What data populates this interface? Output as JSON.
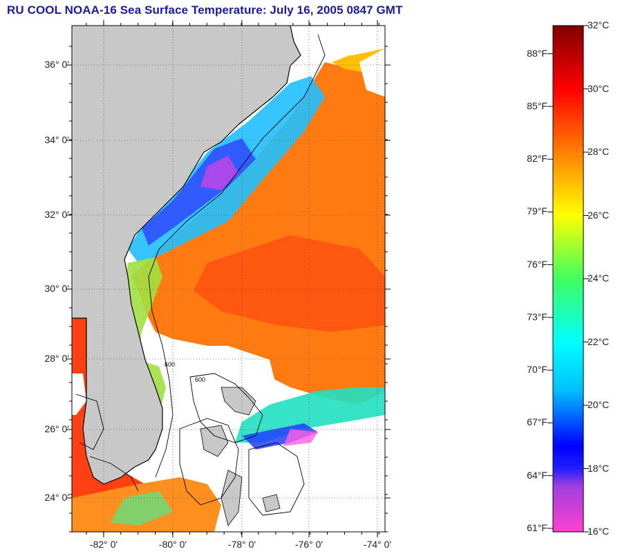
{
  "title": "RU COOL  NOAA-16  Sea Surface Temperature:  July 16, 2005 0847 GMT",
  "map": {
    "lat_labels": [
      "36° 0'",
      "34° 0'",
      "32° 0'",
      "30° 0'",
      "28° 0'",
      "26° 0'",
      "24° 0'"
    ],
    "lon_labels": [
      "-82° 0'",
      "-80° 0'",
      "-78° 0'",
      "-76° 0'",
      "-74° 0'"
    ],
    "contour_label": "600",
    "colors": {
      "land": "#c8c8c8",
      "cloud": "#ffffff",
      "coast": "#000000"
    }
  },
  "colorbar": {
    "celsius_labels": [
      "32°C",
      "30°C",
      "28°C",
      "26°C",
      "24°C",
      "22°C",
      "20°C",
      "18°C",
      "16°C"
    ],
    "fahrenheit_labels": [
      "88°F",
      "85°F",
      "82°F",
      "79°F",
      "76°F",
      "73°F",
      "70°F",
      "67°F",
      "64°F",
      "61°F"
    ],
    "range_c": [
      16,
      32
    ]
  }
}
